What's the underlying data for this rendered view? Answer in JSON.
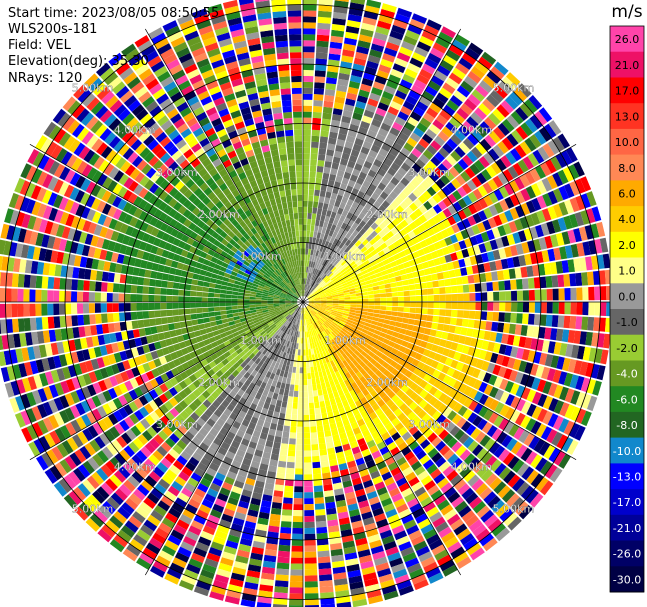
{
  "header": {
    "start_time": "Start time: 2023/08/05 08:50:55",
    "instrument": "WLS200s-181",
    "field": "Field: VEL",
    "elevation": "Elevation(deg): 35.30",
    "nrays": "NRays: 120"
  },
  "colorbar": {
    "unit": "m/s",
    "levels": [
      "26.0",
      "21.0",
      "17.0",
      "13.0",
      "10.0",
      "8.0",
      "6.0",
      "4.0",
      "2.0",
      "1.0",
      "0.0",
      "-1.0",
      "-2.0",
      "-4.0",
      "-6.0",
      "-8.0",
      "-10.0",
      "-13.0",
      "-17.0",
      "-21.0",
      "-26.0",
      "-30.0"
    ],
    "colors": [
      "#ff44aa",
      "#ee1166",
      "#ff0000",
      "#ff3322",
      "#ff6644",
      "#ff8855",
      "#ffaa00",
      "#ffcc00",
      "#ffff00",
      "#ffff88",
      "#999999",
      "#666666",
      "#99cc33",
      "#669922",
      "#228822",
      "#226622",
      "#1188cc",
      "#0000ff",
      "#0000cc",
      "#000099",
      "#000066",
      "#000044"
    ]
  },
  "chart_data": {
    "type": "ppi-polar",
    "field": "VEL",
    "unit": "m/s",
    "nrays": 120,
    "range_rings_km": [
      1.0,
      2.0,
      3.0,
      4.0,
      5.0
    ],
    "ring_labels": [
      "1.00km",
      "2.00km",
      "3.00km",
      "4.00km",
      "5.00km"
    ],
    "vmin": -30.0,
    "vmax": 26.0,
    "max_range_km": 5.3,
    "velocity_pattern": "inbound (green) toward west/northwest, outbound (yellow/orange) toward east/southeast, noise beyond ~3 km"
  }
}
